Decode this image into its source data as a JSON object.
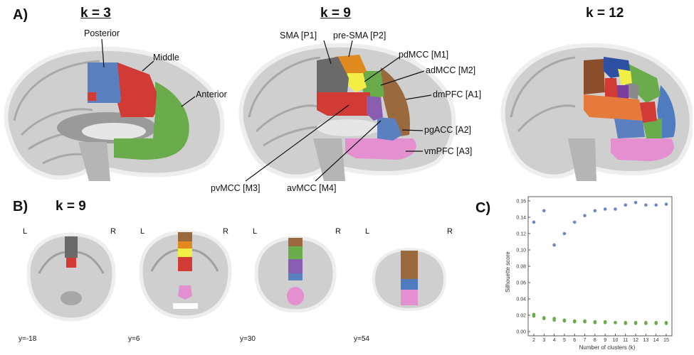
{
  "panel_labels": {
    "a": "A)",
    "b": "B)",
    "c": "C)"
  },
  "panel_a": {
    "titles": [
      "k = 3",
      "k = 9",
      "k = 12"
    ],
    "k3_labels": {
      "posterior": "Posterior",
      "middle": "Middle",
      "anterior": "Anterior"
    },
    "k9_labels": {
      "sma": "SMA [P1]",
      "presma": "pre-SMA [P2]",
      "pdmcc": "pdMCC [M1]",
      "admcc": "adMCC [M2]",
      "dmpfc": "dmPFC [A1]",
      "pgacc": "pgACC [A2]",
      "vmpfc": "vmPFC [A3]",
      "pvmcc": "pvMCC [M3]",
      "avmcc": "avMCC [M4]"
    }
  },
  "panel_b": {
    "title": "k = 9",
    "left": "L",
    "right": "R",
    "slices": [
      "y=-18",
      "y=6",
      "y=30",
      "y=54"
    ]
  },
  "colors": {
    "blue": "#5b7fbf",
    "red": "#d23a36",
    "green": "#6aab4b",
    "gray": "#6a6a6a",
    "orange": "#e08a1e",
    "yellow": "#f2ee45",
    "brown": "#9a6a3e",
    "purple": "#8a5db0",
    "pink": "#e48fcf",
    "lightblue": "#4f7cc0",
    "coral": "#e57a3c",
    "scatter_blue": "#6d86c6",
    "scatter_green": "#6aab4b"
  },
  "chart_data": {
    "type": "scatter",
    "xlabel": "Number of clusters (k)",
    "ylabel": "Silhouette score",
    "xlim": [
      2,
      15
    ],
    "ylim": [
      0,
      0.16
    ],
    "x_ticks": [
      "2",
      "3",
      "4",
      "5",
      "6",
      "7",
      "8",
      "9",
      "10",
      "11",
      "12",
      "13",
      "14",
      "15"
    ],
    "y_ticks": [
      "0.00",
      "0.02",
      "0.04",
      "0.06",
      "0.08",
      "0.10",
      "0.12",
      "0.14",
      "0.16"
    ],
    "grid": false,
    "series": [
      {
        "x": [
          2,
          3,
          4,
          5,
          6,
          7,
          8,
          9,
          10,
          11,
          12,
          13,
          14,
          15
        ],
        "values": [
          0.134,
          0.148,
          0.106,
          0.12,
          0.134,
          0.142,
          0.148,
          0.15,
          0.15,
          0.155,
          0.158,
          0.155,
          0.155,
          0.156
        ]
      },
      {
        "x": [
          2,
          2,
          3,
          3,
          4,
          4,
          5,
          5,
          6,
          6,
          7,
          7,
          8,
          8,
          9,
          9,
          10,
          10,
          11,
          11,
          12,
          12,
          13,
          13,
          14,
          14,
          15,
          15
        ],
        "values": [
          0.021,
          0.019,
          0.017,
          0.016,
          0.016,
          0.014,
          0.014,
          0.013,
          0.013,
          0.012,
          0.013,
          0.012,
          0.012,
          0.011,
          0.012,
          0.011,
          0.011,
          0.011,
          0.011,
          0.01,
          0.011,
          0.01,
          0.011,
          0.01,
          0.011,
          0.01,
          0.011,
          0.01
        ]
      }
    ]
  }
}
